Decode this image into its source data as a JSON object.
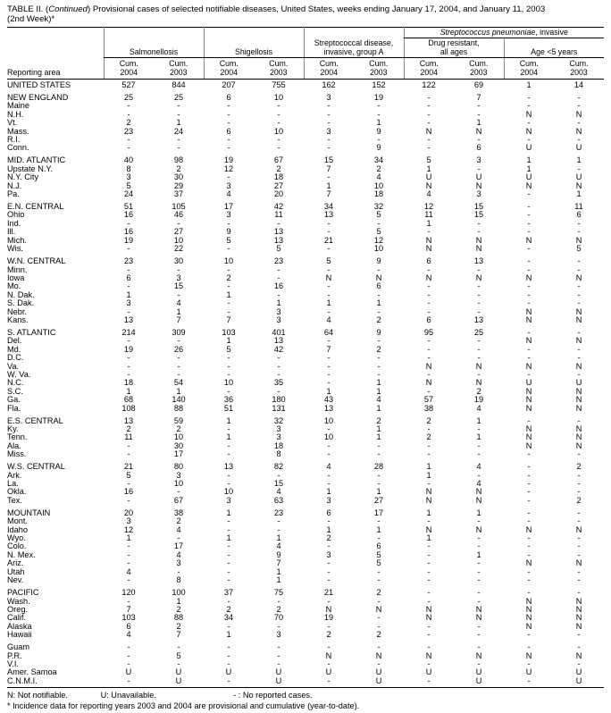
{
  "title": {
    "t1": "TABLE II. (",
    "t2": "Continued",
    "t3": ") Provisional cases of selected notifiable diseases, United States, weeks ending January 17, 2004, and January 11, 2003",
    "line2": "(2nd Week)*"
  },
  "table": {
    "reporting_area": "Reporting area",
    "groups": {
      "salmonellosis": "Salmonellosis",
      "shigellosis": "Shigellosis",
      "strep_a": "Streptococcal disease,\ninvasive, group A",
      "pneumo_italic": "Streptococcus pneumoniae",
      "pneumo_rest": ", invasive",
      "drug_resistant": "Drug resistant,\nall ages",
      "age_under5": "Age <5 years"
    },
    "columns": [
      {
        "cum": "Cum.",
        "year": "2004"
      },
      {
        "cum": "Cum.",
        "year": "2003"
      },
      {
        "cum": "Cum.",
        "year": "2004"
      },
      {
        "cum": "Cum.",
        "year": "2003"
      },
      {
        "cum": "Cum.",
        "year": "2004"
      },
      {
        "cum": "Cum.",
        "year": "2003"
      },
      {
        "cum": "Cum.",
        "year": "2004"
      },
      {
        "cum": "Cum.",
        "year": "2003"
      },
      {
        "cum": "Cum.",
        "year": "2004"
      },
      {
        "cum": "Cum.",
        "year": "2003"
      }
    ],
    "rows": [
      {
        "area": "UNITED STATES",
        "v": [
          "527",
          "844",
          "207",
          "755",
          "162",
          "152",
          "122",
          "69",
          "1",
          "14"
        ]
      },
      {
        "area": "NEW ENGLAND",
        "gap": true,
        "v": [
          "25",
          "25",
          "6",
          "10",
          "3",
          "19",
          "-",
          "7",
          "-",
          "-"
        ]
      },
      {
        "area": "Maine",
        "v": [
          "-",
          "-",
          "-",
          "-",
          "-",
          "-",
          "-",
          "-",
          "-",
          "-"
        ]
      },
      {
        "area": "N.H.",
        "v": [
          "-",
          "-",
          "-",
          "-",
          "-",
          "-",
          "-",
          "-",
          "N",
          "N"
        ]
      },
      {
        "area": "Vt.",
        "v": [
          "2",
          "1",
          "-",
          "-",
          "-",
          "1",
          "-",
          "1",
          "-",
          "-"
        ]
      },
      {
        "area": "Mass.",
        "v": [
          "23",
          "24",
          "6",
          "10",
          "3",
          "9",
          "N",
          "N",
          "N",
          "N"
        ]
      },
      {
        "area": "R.I.",
        "v": [
          "-",
          "-",
          "-",
          "-",
          "-",
          "-",
          "-",
          "-",
          "-",
          "-"
        ]
      },
      {
        "area": "Conn.",
        "v": [
          "-",
          "-",
          "-",
          "-",
          "-",
          "9",
          "-",
          "6",
          "U",
          "U"
        ]
      },
      {
        "area": "MID. ATLANTIC",
        "gap": true,
        "v": [
          "40",
          "98",
          "19",
          "67",
          "15",
          "34",
          "5",
          "3",
          "1",
          "1"
        ]
      },
      {
        "area": "Upstate N.Y.",
        "v": [
          "8",
          "2",
          "12",
          "2",
          "7",
          "2",
          "1",
          "-",
          "1",
          "-"
        ]
      },
      {
        "area": "N.Y. City",
        "v": [
          "3",
          "30",
          "-",
          "18",
          "-",
          "4",
          "U",
          "U",
          "U",
          "U"
        ]
      },
      {
        "area": "N.J.",
        "v": [
          "5",
          "29",
          "3",
          "27",
          "1",
          "10",
          "N",
          "N",
          "N",
          "N"
        ]
      },
      {
        "area": "Pa.",
        "v": [
          "24",
          "37",
          "4",
          "20",
          "7",
          "18",
          "4",
          "3",
          "-",
          "1"
        ]
      },
      {
        "area": "E.N. CENTRAL",
        "gap": true,
        "v": [
          "51",
          "105",
          "17",
          "42",
          "34",
          "32",
          "12",
          "15",
          "-",
          "11"
        ]
      },
      {
        "area": "Ohio",
        "v": [
          "16",
          "46",
          "3",
          "11",
          "13",
          "5",
          "11",
          "15",
          "-",
          "6"
        ]
      },
      {
        "area": "Ind.",
        "v": [
          "-",
          "-",
          "-",
          "-",
          "-",
          "-",
          "1",
          "-",
          "-",
          "-"
        ]
      },
      {
        "area": "Ill.",
        "v": [
          "16",
          "27",
          "9",
          "13",
          "-",
          "5",
          "-",
          "-",
          "-",
          "-"
        ]
      },
      {
        "area": "Mich.",
        "v": [
          "19",
          "10",
          "5",
          "13",
          "21",
          "12",
          "N",
          "N",
          "N",
          "N"
        ]
      },
      {
        "area": "Wis.",
        "v": [
          "-",
          "22",
          "-",
          "5",
          "-",
          "10",
          "N",
          "N",
          "-",
          "5"
        ]
      },
      {
        "area": "W.N. CENTRAL",
        "gap": true,
        "v": [
          "23",
          "30",
          "10",
          "23",
          "5",
          "9",
          "6",
          "13",
          "-",
          "-"
        ]
      },
      {
        "area": "Minn.",
        "v": [
          "-",
          "-",
          "-",
          "-",
          "-",
          "-",
          "-",
          "-",
          "-",
          "-"
        ]
      },
      {
        "area": "Iowa",
        "v": [
          "6",
          "3",
          "2",
          "-",
          "N",
          "N",
          "N",
          "N",
          "N",
          "N"
        ]
      },
      {
        "area": "Mo.",
        "v": [
          "-",
          "15",
          "-",
          "16",
          "-",
          "6",
          "-",
          "-",
          "-",
          "-"
        ]
      },
      {
        "area": "N. Dak.",
        "v": [
          "1",
          "-",
          "1",
          "-",
          "-",
          "-",
          "-",
          "-",
          "-",
          "-"
        ]
      },
      {
        "area": "S. Dak.",
        "v": [
          "3",
          "4",
          "-",
          "1",
          "1",
          "1",
          "-",
          "-",
          "-",
          "-"
        ]
      },
      {
        "area": "Nebr.",
        "v": [
          "-",
          "1",
          "-",
          "3",
          "-",
          "-",
          "-",
          "-",
          "N",
          "N"
        ]
      },
      {
        "area": "Kans.",
        "v": [
          "13",
          "7",
          "7",
          "3",
          "4",
          "2",
          "6",
          "13",
          "N",
          "N"
        ]
      },
      {
        "area": "S. ATLANTIC",
        "gap": true,
        "v": [
          "214",
          "309",
          "103",
          "401",
          "64",
          "9",
          "95",
          "25",
          "-",
          "-"
        ]
      },
      {
        "area": "Del.",
        "v": [
          "-",
          "-",
          "1",
          "13",
          "-",
          "-",
          "-",
          "-",
          "N",
          "N"
        ]
      },
      {
        "area": "Md.",
        "v": [
          "19",
          "26",
          "5",
          "42",
          "7",
          "2",
          "-",
          "-",
          "-",
          "-"
        ]
      },
      {
        "area": "D.C.",
        "v": [
          "-",
          "-",
          "-",
          "-",
          "-",
          "-",
          "-",
          "-",
          "-",
          "-"
        ]
      },
      {
        "area": "Va.",
        "v": [
          "-",
          "-",
          "-",
          "-",
          "-",
          "-",
          "N",
          "N",
          "N",
          "N"
        ]
      },
      {
        "area": "W. Va.",
        "v": [
          "-",
          "-",
          "-",
          "-",
          "-",
          "-",
          "-",
          "-",
          "-",
          "-"
        ]
      },
      {
        "area": "N.C.",
        "v": [
          "18",
          "54",
          "10",
          "35",
          "-",
          "1",
          "N",
          "N",
          "U",
          "U"
        ]
      },
      {
        "area": "S.C.",
        "v": [
          "1",
          "1",
          "-",
          "-",
          "1",
          "1",
          "-",
          "2",
          "N",
          "N"
        ]
      },
      {
        "area": "Ga.",
        "v": [
          "68",
          "140",
          "36",
          "180",
          "43",
          "4",
          "57",
          "19",
          "N",
          "N"
        ]
      },
      {
        "area": "Fla.",
        "v": [
          "108",
          "88",
          "51",
          "131",
          "13",
          "1",
          "38",
          "4",
          "N",
          "N"
        ]
      },
      {
        "area": "E.S. CENTRAL",
        "gap": true,
        "v": [
          "13",
          "59",
          "1",
          "32",
          "10",
          "2",
          "2",
          "1",
          "-",
          "-"
        ]
      },
      {
        "area": "Ky.",
        "v": [
          "2",
          "2",
          "-",
          "3",
          "-",
          "1",
          "-",
          "-",
          "N",
          "N"
        ]
      },
      {
        "area": "Tenn.",
        "v": [
          "11",
          "10",
          "1",
          "3",
          "10",
          "1",
          "2",
          "1",
          "N",
          "N"
        ]
      },
      {
        "area": "Ala.",
        "v": [
          "-",
          "30",
          "-",
          "18",
          "-",
          "-",
          "-",
          "-",
          "N",
          "N"
        ]
      },
      {
        "area": "Miss.",
        "v": [
          "-",
          "17",
          "-",
          "8",
          "-",
          "-",
          "-",
          "-",
          "-",
          "-"
        ]
      },
      {
        "area": "W.S. CENTRAL",
        "gap": true,
        "v": [
          "21",
          "80",
          "13",
          "82",
          "4",
          "28",
          "1",
          "4",
          "-",
          "2"
        ]
      },
      {
        "area": "Ark.",
        "v": [
          "5",
          "3",
          "-",
          "-",
          "-",
          "-",
          "1",
          "-",
          "-",
          "-"
        ]
      },
      {
        "area": "La.",
        "v": [
          "-",
          "10",
          "-",
          "15",
          "-",
          "-",
          "-",
          "4",
          "-",
          "-"
        ]
      },
      {
        "area": "Okla.",
        "v": [
          "16",
          "-",
          "10",
          "4",
          "1",
          "1",
          "N",
          "N",
          "-",
          "-"
        ]
      },
      {
        "area": "Tex.",
        "v": [
          "-",
          "67",
          "3",
          "63",
          "3",
          "27",
          "N",
          "N",
          "-",
          "2"
        ]
      },
      {
        "area": "MOUNTAIN",
        "gap": true,
        "v": [
          "20",
          "38",
          "1",
          "23",
          "6",
          "17",
          "1",
          "1",
          "-",
          "-"
        ]
      },
      {
        "area": "Mont.",
        "v": [
          "3",
          "2",
          "-",
          "-",
          "-",
          "-",
          "-",
          "-",
          "-",
          "-"
        ]
      },
      {
        "area": "Idaho",
        "v": [
          "12",
          "4",
          "-",
          "-",
          "1",
          "1",
          "N",
          "N",
          "N",
          "N"
        ]
      },
      {
        "area": "Wyo.",
        "v": [
          "1",
          "-",
          "1",
          "1",
          "2",
          "-",
          "1",
          "-",
          "-",
          "-"
        ]
      },
      {
        "area": "Colo.",
        "v": [
          "-",
          "17",
          "-",
          "4",
          "-",
          "6",
          "-",
          "-",
          "-",
          "-"
        ]
      },
      {
        "area": "N. Mex.",
        "v": [
          "-",
          "4",
          "-",
          "9",
          "3",
          "5",
          "-",
          "1",
          "-",
          "-"
        ]
      },
      {
        "area": "Ariz.",
        "v": [
          "-",
          "3",
          "-",
          "7",
          "-",
          "5",
          "-",
          "-",
          "N",
          "N"
        ]
      },
      {
        "area": "Utah",
        "v": [
          "4",
          "-",
          "-",
          "1",
          "-",
          "-",
          "-",
          "-",
          "-",
          "-"
        ]
      },
      {
        "area": "Nev.",
        "v": [
          "-",
          "8",
          "-",
          "1",
          "-",
          "-",
          "-",
          "-",
          "-",
          "-"
        ]
      },
      {
        "area": "PACIFIC",
        "gap": true,
        "v": [
          "120",
          "100",
          "37",
          "75",
          "21",
          "2",
          "-",
          "-",
          "-",
          "-"
        ]
      },
      {
        "area": "Wash.",
        "v": [
          "-",
          "1",
          "-",
          "-",
          "-",
          "-",
          "-",
          "-",
          "N",
          "N"
        ]
      },
      {
        "area": "Oreg.",
        "v": [
          "7",
          "2",
          "2",
          "2",
          "N",
          "N",
          "N",
          "N",
          "N",
          "N"
        ]
      },
      {
        "area": "Calif.",
        "v": [
          "103",
          "88",
          "34",
          "70",
          "19",
          "-",
          "N",
          "N",
          "N",
          "N"
        ]
      },
      {
        "area": "Alaska",
        "v": [
          "6",
          "2",
          "-",
          "-",
          "-",
          "-",
          "-",
          "-",
          "N",
          "N"
        ]
      },
      {
        "area": "Hawaii",
        "v": [
          "4",
          "7",
          "1",
          "3",
          "2",
          "2",
          "-",
          "-",
          "-",
          "-"
        ]
      },
      {
        "area": "Guam",
        "gap": true,
        "v": [
          "-",
          "-",
          "-",
          "-",
          "-",
          "-",
          "-",
          "-",
          "-",
          "-"
        ]
      },
      {
        "area": "P.R.",
        "v": [
          "-",
          "5",
          "-",
          "-",
          "N",
          "N",
          "N",
          "N",
          "N",
          "N"
        ]
      },
      {
        "area": "V.I.",
        "v": [
          "-",
          "-",
          "-",
          "-",
          "-",
          "-",
          "-",
          "-",
          "-",
          "-"
        ]
      },
      {
        "area": "Amer. Samoa",
        "v": [
          "U",
          "U",
          "U",
          "U",
          "U",
          "U",
          "U",
          "U",
          "U",
          "U"
        ]
      },
      {
        "area": "C.N.M.I.",
        "v": [
          "-",
          "U",
          "-",
          "U",
          "-",
          "U",
          "-",
          "U",
          "-",
          "U"
        ]
      }
    ]
  },
  "footnotes": {
    "n": "N: Not notifiable.",
    "u": "U: Unavailable.",
    "dash": "- : No reported cases.",
    "star": "* Incidence data for reporting years 2003 and 2004 are provisional and cumulative (year-to-date)."
  }
}
